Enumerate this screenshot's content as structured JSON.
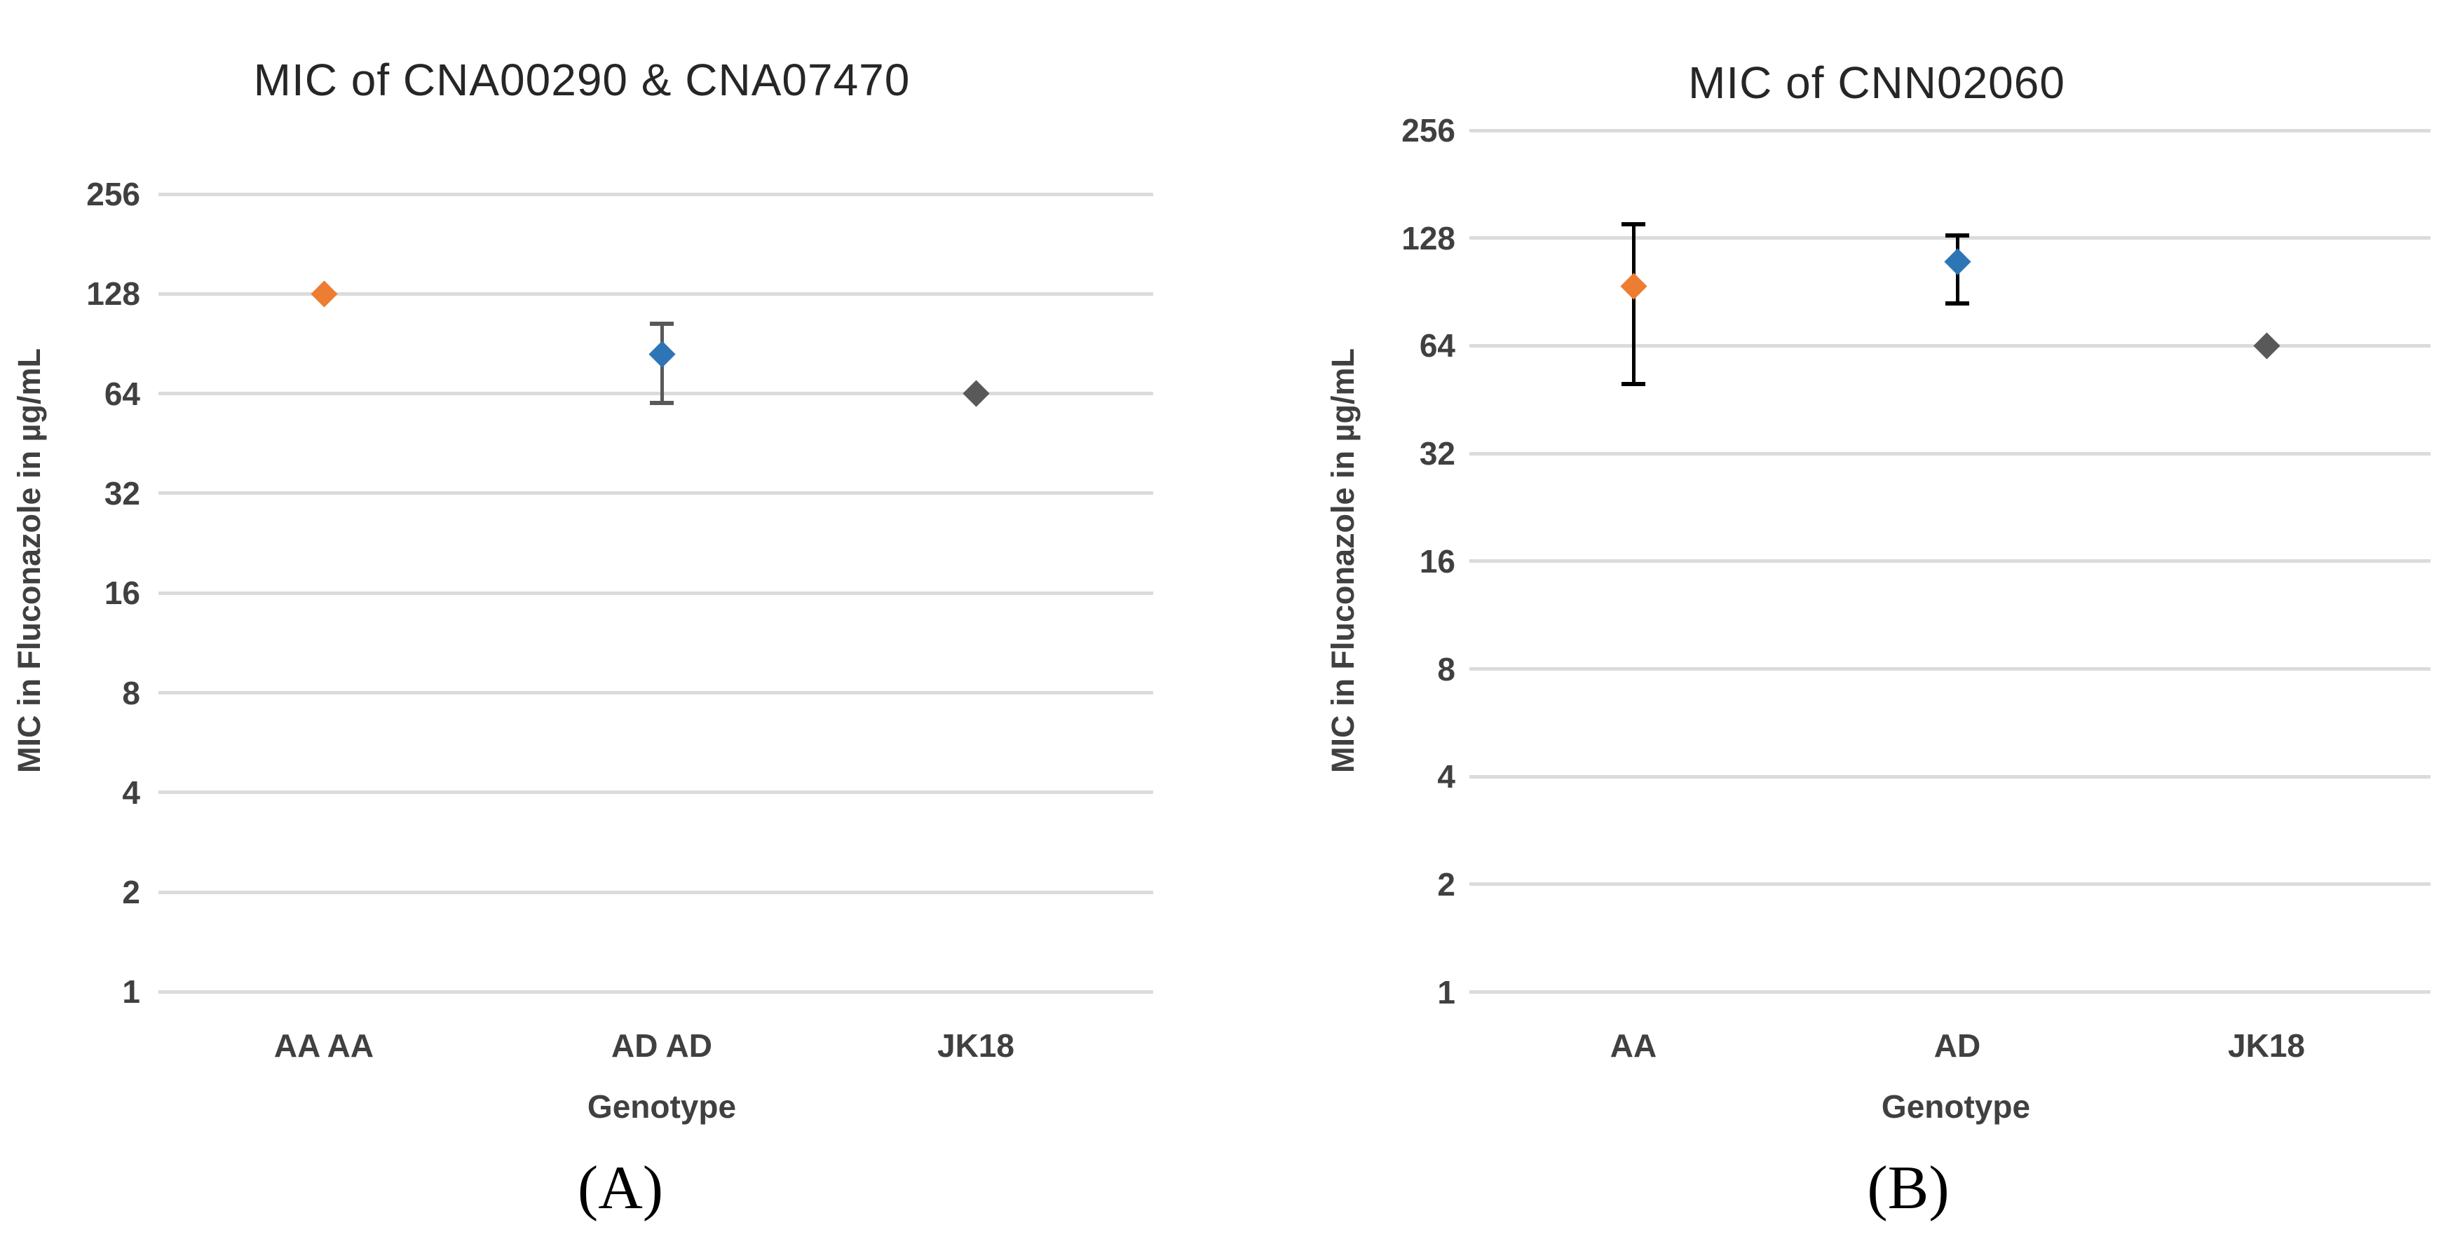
{
  "chart_data": [
    {
      "type": "scatter",
      "panel_label": "(A)",
      "title": "MIC of CNA00290 & CNA07470",
      "xlabel": "Genotype",
      "ylabel": "MIC in Fluconazole in µg/mL",
      "y_scale": "log2",
      "ylim": [
        1,
        256
      ],
      "yticks": [
        256,
        128,
        64,
        32,
        16,
        8,
        4,
        2,
        1
      ],
      "grid": "horizontal",
      "gridline_color": "#DBDBDB",
      "legend": "none",
      "categories": [
        "AA AA",
        "AD AD",
        "JK18"
      ],
      "series": [
        {
          "name": "AA AA",
          "value": 128,
          "error_low": null,
          "error_high": null,
          "marker": "diamond",
          "marker_color": "#ED7D31",
          "error_color": null
        },
        {
          "name": "AD AD",
          "value": 84,
          "error_low": 60,
          "error_high": 104,
          "marker": "diamond",
          "marker_color": "#2E75B6",
          "error_color": "#595959"
        },
        {
          "name": "JK18",
          "value": 64,
          "error_low": null,
          "error_high": null,
          "marker": "diamond",
          "marker_color": "#595959",
          "error_color": null
        }
      ]
    },
    {
      "type": "scatter",
      "panel_label": "(B)",
      "title": "MIC of CNN02060",
      "xlabel": "Genotype",
      "ylabel": "MIC in Fluconazole in µg/mL",
      "y_scale": "log2",
      "ylim": [
        1,
        256
      ],
      "yticks": [
        256,
        128,
        64,
        32,
        16,
        8,
        4,
        2,
        1
      ],
      "grid": "horizontal",
      "gridline_color": "#DBDBDB",
      "legend": "none",
      "categories": [
        "AA",
        "AD",
        "JK18"
      ],
      "series": [
        {
          "name": "AA",
          "value": 94,
          "error_low": 50,
          "error_high": 140,
          "marker": "diamond",
          "marker_color": "#ED7D31",
          "error_color": "#000000"
        },
        {
          "name": "AD",
          "value": 110,
          "error_low": 84,
          "error_high": 130,
          "marker": "diamond",
          "marker_color": "#2E75B6",
          "error_color": "#000000"
        },
        {
          "name": "JK18",
          "value": 64,
          "error_low": null,
          "error_high": null,
          "marker": "diamond",
          "marker_color": "#595959",
          "error_color": null
        }
      ]
    }
  ]
}
